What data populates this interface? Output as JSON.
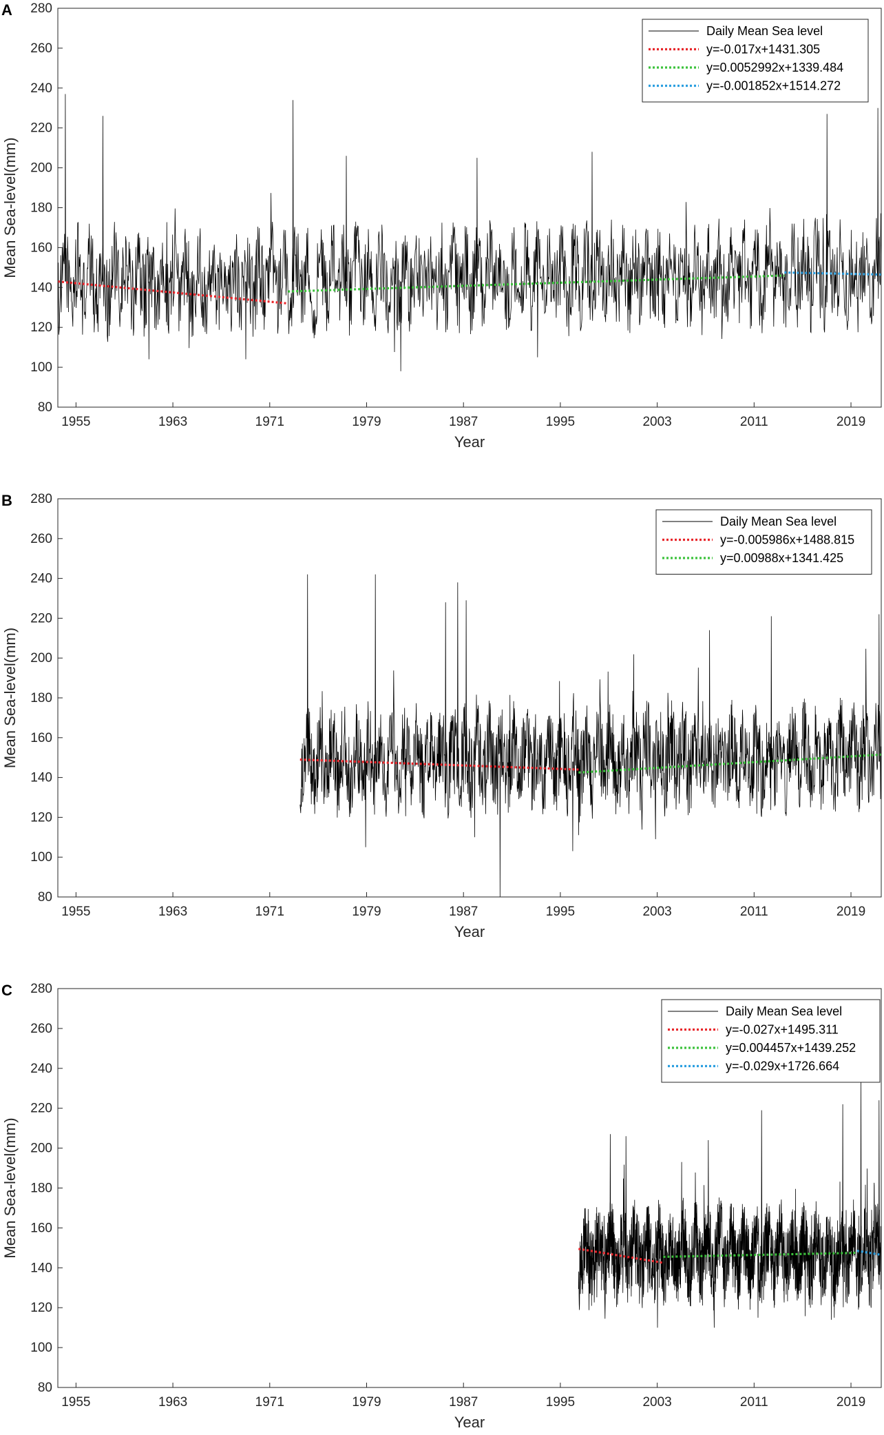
{
  "colors": {
    "series": "#000000",
    "red": "#e8262b",
    "green": "#3cc23c",
    "blue": "#2c9fe0",
    "axis": "#262626"
  },
  "chart_data": [
    {
      "panel_label": "A",
      "type": "line",
      "title": "",
      "xlabel": "Year",
      "ylabel": "Mean Sea-level(mm)",
      "xlim": [
        1953.5,
        2021.5
      ],
      "ylim": [
        80,
        280
      ],
      "xticks": [
        1955,
        1963,
        1971,
        1979,
        1987,
        1995,
        2003,
        2011,
        2019
      ],
      "yticks": [
        80,
        100,
        120,
        140,
        160,
        180,
        200,
        220,
        240,
        260,
        280
      ],
      "legend_position": "top-right",
      "series": [
        {
          "name": "Daily Mean Sea level",
          "style": "solid",
          "color": "series",
          "start": 1953.5,
          "end": 2021.5,
          "mean_start": 143,
          "mean_end": 146,
          "typical_min": 115,
          "typical_max": 175,
          "peaks": [
            [
              1954.1,
              237
            ],
            [
              1957.2,
              226
            ],
            [
              1972.9,
              234
            ],
            [
              1977.3,
              206
            ],
            [
              1988.1,
              205
            ],
            [
              1997.6,
              208
            ],
            [
              2017.0,
              227
            ],
            [
              2021.2,
              230
            ]
          ],
          "troughs": [
            [
              1961.0,
              104
            ],
            [
              1969.0,
              104
            ],
            [
              1981.8,
              98
            ],
            [
              1993.1,
              105
            ]
          ]
        },
        {
          "name": "y=-0.017x+1431.305",
          "style": "dotted",
          "color": "red",
          "x": [
            1953.5,
            1972.5
          ],
          "y": [
            143.0,
            132.0
          ]
        },
        {
          "name": "y=0.0052992x+1339.484",
          "style": "dotted",
          "color": "green",
          "x": [
            1972.5,
            2013.5
          ],
          "y": [
            138.0,
            146.0
          ]
        },
        {
          "name": "y=-0.001852x+1514.272",
          "style": "dotted",
          "color": "blue",
          "x": [
            2013.5,
            2021.5
          ],
          "y": [
            147.5,
            146.5
          ]
        }
      ]
    },
    {
      "panel_label": "B",
      "type": "line",
      "title": "",
      "xlabel": "Year",
      "ylabel": "Mean Sea-level(mm)",
      "xlim": [
        1953.5,
        2021.5
      ],
      "ylim": [
        80,
        280
      ],
      "xticks": [
        1955,
        1963,
        1971,
        1979,
        1987,
        1995,
        2003,
        2011,
        2019
      ],
      "yticks": [
        80,
        100,
        120,
        140,
        160,
        180,
        200,
        220,
        240,
        260,
        280
      ],
      "legend_position": "top-right",
      "series": [
        {
          "name": "Daily Mean Sea level",
          "style": "solid",
          "color": "series",
          "start": 1973.5,
          "end": 2021.5,
          "mean_start": 148,
          "mean_end": 151,
          "typical_min": 120,
          "typical_max": 180,
          "peaks": [
            [
              1974.1,
              242
            ],
            [
              1979.7,
              242
            ],
            [
              1985.5,
              228
            ],
            [
              1986.5,
              238
            ],
            [
              1987.2,
              229
            ],
            [
              2007.3,
              214
            ],
            [
              2012.4,
              221
            ],
            [
              2021.3,
              222
            ]
          ],
          "troughs": [
            [
              1978.9,
              105
            ],
            [
              1987.9,
              110
            ],
            [
              1990.0,
              80
            ],
            [
              1996.0,
              103
            ]
          ]
        },
        {
          "name": "y=-0.005986x+1488.815",
          "style": "dotted",
          "color": "red",
          "x": [
            1973.5,
            1996.5
          ],
          "y": [
            149.0,
            144.0
          ]
        },
        {
          "name": "y=0.00988x+1341.425",
          "style": "dotted",
          "color": "green",
          "x": [
            1996.5,
            2021.5
          ],
          "y": [
            142.5,
            151.5
          ]
        }
      ]
    },
    {
      "panel_label": "C",
      "type": "line",
      "title": "",
      "xlabel": "Year",
      "ylabel": "Mean Sea-level(mm)",
      "xlim": [
        1953.5,
        2021.5
      ],
      "ylim": [
        80,
        280
      ],
      "xticks": [
        1955,
        1963,
        1971,
        1979,
        1987,
        1995,
        2003,
        2011,
        2019
      ],
      "yticks": [
        80,
        100,
        120,
        140,
        160,
        180,
        200,
        220,
        240,
        260,
        280
      ],
      "legend_position": "top-right",
      "series": [
        {
          "name": "Daily Mean Sea level",
          "style": "solid",
          "color": "series",
          "start": 1996.5,
          "end": 2021.5,
          "mean_start": 147,
          "mean_end": 147,
          "typical_min": 122,
          "typical_max": 178,
          "peaks": [
            [
              1999.1,
              207
            ],
            [
              2000.4,
              206
            ],
            [
              2007.2,
              204
            ],
            [
              2011.6,
              219
            ],
            [
              2018.3,
              222
            ],
            [
              2019.8,
              234
            ],
            [
              2021.3,
              224
            ]
          ],
          "troughs": [
            [
              2003.0,
              110
            ],
            [
              2011.3,
              115
            ],
            [
              2017.6,
              115
            ]
          ]
        },
        {
          "name": "y=-0.027x+1495.311",
          "style": "dotted",
          "color": "red",
          "x": [
            1996.5,
            2003.5
          ],
          "y": [
            149.5,
            142.5
          ]
        },
        {
          "name": "y=0.004457x+1439.252",
          "style": "dotted",
          "color": "green",
          "x": [
            2003.5,
            2019.5
          ],
          "y": [
            145.5,
            147.5
          ]
        },
        {
          "name": "y=-0.029x+1726.664",
          "style": "dotted",
          "color": "blue",
          "x": [
            2019.5,
            2021.5
          ],
          "y": [
            148.5,
            146.5
          ]
        }
      ]
    }
  ]
}
